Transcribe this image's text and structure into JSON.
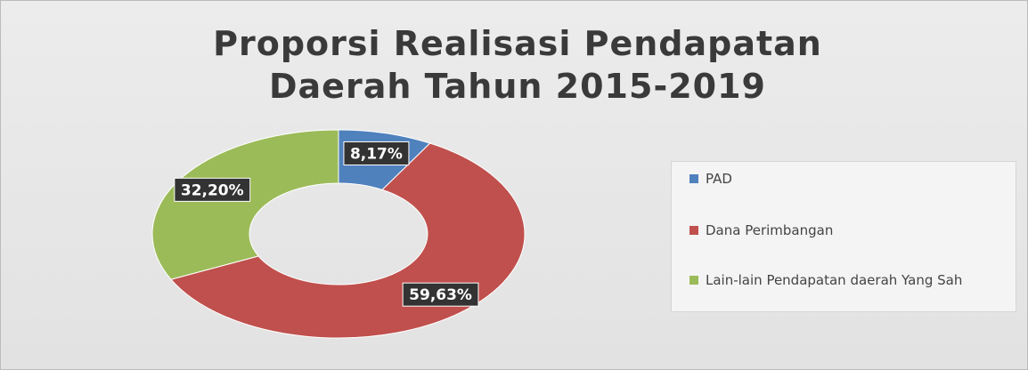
{
  "chart_data": {
    "type": "donut",
    "title": "Proporsi Realisasi Pendapatan Daerah Tahun 2015-2019",
    "categories": [
      "PAD",
      "Dana Perimbangan",
      "Lain-lain Pendapatan daerah Yang Sah"
    ],
    "values": [
      8.17,
      59.63,
      32.2
    ],
    "value_labels": [
      "8,17%",
      "59,63%",
      "32,20%"
    ],
    "colors": [
      "#4f81bd",
      "#c0504d",
      "#9bbb59"
    ],
    "legend": "right"
  }
}
